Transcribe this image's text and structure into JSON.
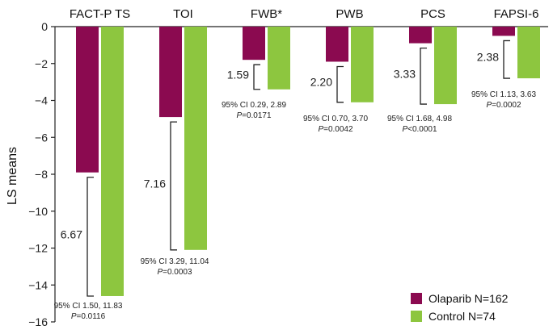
{
  "chart_data": {
    "type": "bar",
    "ylabel": "LS means",
    "ylim": [
      -16,
      0
    ],
    "yticks": [
      0,
      -2,
      -4,
      -6,
      -8,
      -10,
      -12,
      -14,
      -16
    ],
    "yticklabels": [
      "0",
      "−2",
      "−4",
      "−6",
      "−8",
      "−10",
      "−12",
      "−14",
      "−16"
    ],
    "categories": [
      "FACT-P TS",
      "TOI",
      "FWB*",
      "PWB",
      "PCS",
      "FAPSI-6"
    ],
    "series": [
      {
        "name": "Olaparib N=162",
        "color": "#8b0a50",
        "values": [
          -7.9,
          -4.9,
          -1.8,
          -1.9,
          -0.9,
          -0.5
        ]
      },
      {
        "name": "Control N=74",
        "color": "#8dc63f",
        "values": [
          -14.6,
          -12.1,
          -3.4,
          -4.1,
          -4.2,
          -2.8
        ]
      }
    ],
    "differences": [
      "6.67",
      "7.16",
      "1.59",
      "2.20",
      "3.33",
      "2.38"
    ],
    "ci_text": [
      "95% CI 1.50, 11.83",
      "95% CI 3.29, 11.04",
      "95% CI 0.29, 2.89",
      "95% CI 0.70, 3.70",
      "95% CI 1.68, 4.98",
      "95% CI 1.13, 3.63"
    ],
    "p_text": [
      "=0.0116",
      "=0.0003",
      "=0.0171",
      "=0.0042",
      "<0.0001",
      "=0.0002"
    ],
    "p_prefix": "P",
    "legend_position": "bottom-right",
    "grid": false
  }
}
